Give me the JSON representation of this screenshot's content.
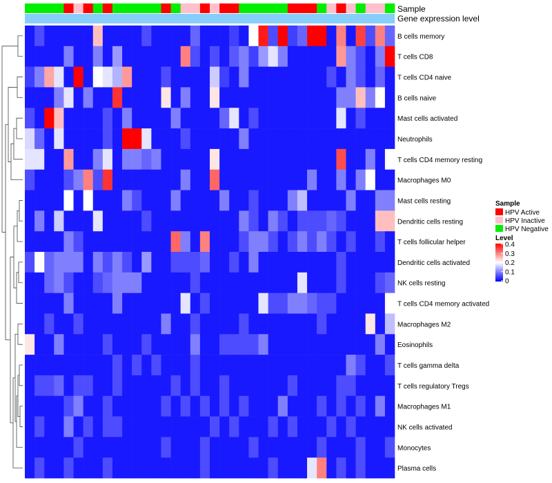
{
  "chart_data": {
    "type": "heatmap",
    "annotation_labels": {
      "sample": "Sample",
      "gene": "Gene expression level"
    },
    "legend": {
      "sample_title": "Sample",
      "sample_items": [
        {
          "label": "HPV Active",
          "color": "#FF0000"
        },
        {
          "label": "HPV Inactive",
          "color": "#FFC0CB"
        },
        {
          "label": "HPV Negative",
          "color": "#00EE00"
        }
      ],
      "level_title": "Level",
      "level_ticks": [
        "0.4",
        "0.3",
        "0.2",
        "0.1",
        "0"
      ],
      "level_range": [
        0,
        0.4
      ]
    },
    "colors": {
      "low": "#0000FF",
      "mid": "#FFFFFF",
      "high": "#FF0000",
      "gene_bar": "#87CEFA"
    },
    "sample_groups": [
      "N",
      "N",
      "N",
      "N",
      "A",
      "I",
      "A",
      "N",
      "A",
      "N",
      "N",
      "N",
      "N",
      "N",
      "A",
      "N",
      "I",
      "I",
      "A",
      "I",
      "A",
      "A",
      "N",
      "N",
      "N",
      "N",
      "N",
      "A",
      "A",
      "A",
      "N",
      "I",
      "A",
      "I",
      "N",
      "I",
      "I",
      "N"
    ],
    "rows": [
      {
        "name": "B cells memory",
        "values": [
          0.02,
          0.06,
          0.02,
          0.02,
          0.02,
          0.02,
          0.02,
          0.25,
          0.02,
          0.02,
          0.02,
          0.02,
          0.06,
          0.02,
          0.02,
          0.02,
          0.02,
          0.08,
          0.02,
          0.02,
          0.02,
          0.05,
          0.02,
          0.2,
          0.38,
          0.06,
          0.4,
          0.05,
          0.08,
          0.4,
          0.4,
          0.02,
          0.3,
          0.02,
          0.35,
          0.06,
          0.3,
          0.08
        ]
      },
      {
        "name": "T cells CD8",
        "values": [
          0.02,
          0.02,
          0.02,
          0.02,
          0.1,
          0.02,
          0.02,
          0.1,
          0.02,
          0.12,
          0.02,
          0.02,
          0.02,
          0.02,
          0.02,
          0.02,
          0.3,
          0.06,
          0.02,
          0.06,
          0.02,
          0.07,
          0.1,
          0.05,
          0.12,
          0.18,
          0.1,
          0.02,
          0.02,
          0.02,
          0.02,
          0.02,
          0.28,
          0.1,
          0.06,
          0.02,
          0.1,
          0.4
        ]
      },
      {
        "name": "T cells CD4 naive",
        "values": [
          0.05,
          0.1,
          0.27,
          0.18,
          0.02,
          0.4,
          0.02,
          0.2,
          0.18,
          0.14,
          0.28,
          0.02,
          0.02,
          0.02,
          0.06,
          0.02,
          0.02,
          0.02,
          0.02,
          0.16,
          0.05,
          0.02,
          0.1,
          0.02,
          0.02,
          0.02,
          0.02,
          0.02,
          0.02,
          0.02,
          0.02,
          0.06,
          0.02,
          0.1,
          0.06,
          0.02,
          0.08,
          0.02
        ]
      },
      {
        "name": "B cells naive",
        "values": [
          0.02,
          0.02,
          0.02,
          0.1,
          0.18,
          0.02,
          0.1,
          0.02,
          0.02,
          0.36,
          0.02,
          0.02,
          0.02,
          0.02,
          0.22,
          0.02,
          0.1,
          0.02,
          0.02,
          0.22,
          0.02,
          0.02,
          0.02,
          0.02,
          0.02,
          0.02,
          0.02,
          0.02,
          0.02,
          0.02,
          0.02,
          0.02,
          0.1,
          0.1,
          0.25,
          0.1,
          0.2,
          0.02
        ]
      },
      {
        "name": "Mast cells activated",
        "values": [
          0.06,
          0.02,
          0.4,
          0.25,
          0.02,
          0.02,
          0.02,
          0.02,
          0.06,
          0.02,
          0.1,
          0.02,
          0.02,
          0.02,
          0.02,
          0.1,
          0.02,
          0.02,
          0.02,
          0.02,
          0.08,
          0.18,
          0.02,
          0.06,
          0.02,
          0.02,
          0.02,
          0.02,
          0.02,
          0.02,
          0.02,
          0.02,
          0.18,
          0.02,
          0.06,
          0.02,
          0.02,
          0.02
        ]
      },
      {
        "name": "Neutrophils",
        "values": [
          0.17,
          0.08,
          0.02,
          0.18,
          0.02,
          0.02,
          0.02,
          0.02,
          0.06,
          0.02,
          0.4,
          0.4,
          0.18,
          0.02,
          0.02,
          0.02,
          0.06,
          0.02,
          0.02,
          0.02,
          0.02,
          0.02,
          0.1,
          0.02,
          0.02,
          0.02,
          0.02,
          0.02,
          0.02,
          0.02,
          0.02,
          0.02,
          0.02,
          0.02,
          0.02,
          0.02,
          0.02,
          0.02
        ]
      },
      {
        "name": "T cells CD4 memory resting",
        "values": [
          0.18,
          0.18,
          0.02,
          0.02,
          0.28,
          0.02,
          0.02,
          0.1,
          0.18,
          0.02,
          0.1,
          0.1,
          0.08,
          0.1,
          0.02,
          0.02,
          0.02,
          0.02,
          0.02,
          0.22,
          0.02,
          0.02,
          0.02,
          0.02,
          0.02,
          0.02,
          0.02,
          0.02,
          0.02,
          0.02,
          0.02,
          0.02,
          0.34,
          0.02,
          0.02,
          0.1,
          0.02,
          0.2
        ]
      },
      {
        "name": "Macrophages M0",
        "values": [
          0.06,
          0.02,
          0.02,
          0.02,
          0.06,
          0.1,
          0.3,
          0.06,
          0.36,
          0.02,
          0.02,
          0.02,
          0.02,
          0.02,
          0.02,
          0.02,
          0.1,
          0.02,
          0.02,
          0.32,
          0.02,
          0.02,
          0.02,
          0.02,
          0.02,
          0.02,
          0.02,
          0.02,
          0.02,
          0.1,
          0.02,
          0.02,
          0.1,
          0.02,
          0.1,
          0.2,
          0.02,
          0.02
        ]
      },
      {
        "name": "Mast cells resting",
        "values": [
          0.02,
          0.02,
          0.02,
          0.02,
          0.2,
          0.02,
          0.2,
          0.02,
          0.02,
          0.02,
          0.1,
          0.06,
          0.02,
          0.02,
          0.02,
          0.1,
          0.02,
          0.02,
          0.02,
          0.02,
          0.1,
          0.02,
          0.02,
          0.06,
          0.02,
          0.02,
          0.02,
          0.1,
          0.15,
          0.02,
          0.02,
          0.02,
          0.02,
          0.1,
          0.02,
          0.02,
          0.1,
          0.1
        ]
      },
      {
        "name": "Dendritic cells resting",
        "values": [
          0.02,
          0.1,
          0.02,
          0.16,
          0.02,
          0.02,
          0.02,
          0.18,
          0.02,
          0.02,
          0.02,
          0.02,
          0.06,
          0.02,
          0.02,
          0.02,
          0.02,
          0.02,
          0.02,
          0.02,
          0.02,
          0.02,
          0.1,
          0.06,
          0.02,
          0.1,
          0.06,
          0.02,
          0.06,
          0.06,
          0.06,
          0.08,
          0.06,
          0.02,
          0.02,
          0.02,
          0.25,
          0.25
        ]
      },
      {
        "name": "T cells follicular helper",
        "values": [
          0.02,
          0.02,
          0.02,
          0.02,
          0.1,
          0.06,
          0.02,
          0.02,
          0.02,
          0.02,
          0.02,
          0.02,
          0.02,
          0.02,
          0.02,
          0.32,
          0.1,
          0.02,
          0.3,
          0.02,
          0.02,
          0.02,
          0.06,
          0.1,
          0.1,
          0.06,
          0.02,
          0.06,
          0.1,
          0.06,
          0.1,
          0.06,
          0.02,
          0.06,
          0.02,
          0.02,
          0.06,
          0.02
        ]
      },
      {
        "name": "Dendritic cells activated",
        "values": [
          0.06,
          0.2,
          0.08,
          0.1,
          0.1,
          0.1,
          0.02,
          0.1,
          0.06,
          0.1,
          0.06,
          0.02,
          0.12,
          0.02,
          0.02,
          0.06,
          0.06,
          0.06,
          0.08,
          0.02,
          0.02,
          0.06,
          0.02,
          0.1,
          0.02,
          0.02,
          0.02,
          0.02,
          0.02,
          0.02,
          0.02,
          0.02,
          0.06,
          0.02,
          0.02,
          0.02,
          0.02,
          0.02
        ]
      },
      {
        "name": "NK cells resting",
        "values": [
          0.02,
          0.02,
          0.08,
          0.1,
          0.06,
          0.02,
          0.02,
          0.06,
          0.08,
          0.1,
          0.1,
          0.1,
          0.02,
          0.02,
          0.02,
          0.02,
          0.02,
          0.06,
          0.02,
          0.02,
          0.02,
          0.02,
          0.02,
          0.02,
          0.02,
          0.02,
          0.02,
          0.02,
          0.18,
          0.02,
          0.02,
          0.02,
          0.06,
          0.02,
          0.02,
          0.02,
          0.06,
          0.08
        ]
      },
      {
        "name": "T cells CD4 memory activated",
        "values": [
          0.02,
          0.02,
          0.02,
          0.02,
          0.1,
          0.02,
          0.02,
          0.02,
          0.02,
          0.1,
          0.02,
          0.02,
          0.02,
          0.02,
          0.02,
          0.02,
          0.18,
          0.02,
          0.06,
          0.02,
          0.02,
          0.02,
          0.02,
          0.02,
          0.18,
          0.06,
          0.06,
          0.1,
          0.1,
          0.08,
          0.06,
          0.06,
          0.02,
          0.02,
          0.02,
          0.02,
          0.02,
          0.2
        ]
      },
      {
        "name": "Macrophages M2",
        "values": [
          0.02,
          0.02,
          0.06,
          0.02,
          0.02,
          0.06,
          0.02,
          0.02,
          0.02,
          0.02,
          0.02,
          0.02,
          0.02,
          0.02,
          0.1,
          0.02,
          0.02,
          0.06,
          0.02,
          0.02,
          0.02,
          0.02,
          0.06,
          0.02,
          0.02,
          0.02,
          0.02,
          0.02,
          0.02,
          0.02,
          0.06,
          0.02,
          0.02,
          0.02,
          0.02,
          0.22,
          0.02,
          0.15
        ]
      },
      {
        "name": "Eosinophils",
        "values": [
          0.22,
          0.02,
          0.02,
          0.1,
          0.02,
          0.02,
          0.02,
          0.02,
          0.06,
          0.02,
          0.02,
          0.02,
          0.06,
          0.02,
          0.02,
          0.02,
          0.02,
          0.1,
          0.02,
          0.02,
          0.06,
          0.06,
          0.06,
          0.06,
          0.1,
          0.02,
          0.02,
          0.02,
          0.02,
          0.02,
          0.02,
          0.02,
          0.02,
          0.02,
          0.02,
          0.02,
          0.1,
          0.02
        ]
      },
      {
        "name": "T cells gamma delta",
        "values": [
          0.02,
          0.02,
          0.02,
          0.02,
          0.02,
          0.02,
          0.02,
          0.02,
          0.02,
          0.06,
          0.02,
          0.06,
          0.02,
          0.06,
          0.02,
          0.02,
          0.02,
          0.06,
          0.02,
          0.02,
          0.02,
          0.02,
          0.02,
          0.02,
          0.02,
          0.02,
          0.02,
          0.02,
          0.02,
          0.02,
          0.02,
          0.02,
          0.02,
          0.1,
          0.06,
          0.02,
          0.02,
          0.06
        ]
      },
      {
        "name": "T cells regulatory  Tregs",
        "values": [
          0.02,
          0.06,
          0.06,
          0.08,
          0.02,
          0.06,
          0.06,
          0.02,
          0.02,
          0.06,
          0.02,
          0.02,
          0.02,
          0.02,
          0.02,
          0.06,
          0.02,
          0.06,
          0.02,
          0.02,
          0.06,
          0.02,
          0.02,
          0.02,
          0.02,
          0.02,
          0.02,
          0.06,
          0.02,
          0.02,
          0.02,
          0.02,
          0.06,
          0.06,
          0.02,
          0.02,
          0.02,
          0.02
        ]
      },
      {
        "name": "Macrophages M1",
        "values": [
          0.02,
          0.02,
          0.02,
          0.02,
          0.06,
          0.1,
          0.02,
          0.02,
          0.06,
          0.02,
          0.02,
          0.02,
          0.02,
          0.02,
          0.06,
          0.02,
          0.06,
          0.02,
          0.06,
          0.02,
          0.06,
          0.02,
          0.06,
          0.02,
          0.02,
          0.02,
          0.1,
          0.02,
          0.02,
          0.02,
          0.06,
          0.02,
          0.06,
          0.02,
          0.06,
          0.02,
          0.1,
          0.02
        ]
      },
      {
        "name": "NK cells activated",
        "values": [
          0.02,
          0.06,
          0.02,
          0.02,
          0.1,
          0.02,
          0.06,
          0.02,
          0.06,
          0.06,
          0.02,
          0.02,
          0.02,
          0.02,
          0.02,
          0.02,
          0.02,
          0.02,
          0.02,
          0.06,
          0.02,
          0.06,
          0.02,
          0.02,
          0.02,
          0.06,
          0.02,
          0.06,
          0.02,
          0.02,
          0.02,
          0.06,
          0.02,
          0.06,
          0.02,
          0.02,
          0.02,
          0.02
        ]
      },
      {
        "name": "Monocytes",
        "values": [
          0.02,
          0.02,
          0.02,
          0.02,
          0.02,
          0.06,
          0.02,
          0.02,
          0.02,
          0.02,
          0.02,
          0.02,
          0.02,
          0.02,
          0.06,
          0.02,
          0.02,
          0.02,
          0.06,
          0.02,
          0.02,
          0.02,
          0.02,
          0.06,
          0.02,
          0.02,
          0.02,
          0.02,
          0.02,
          0.02,
          0.06,
          0.02,
          0.02,
          0.02,
          0.06,
          0.02,
          0.02,
          0.06
        ]
      },
      {
        "name": "Plasma cells",
        "values": [
          0.02,
          0.06,
          0.02,
          0.02,
          0.06,
          0.02,
          0.02,
          0.02,
          0.06,
          0.02,
          0.02,
          0.02,
          0.02,
          0.02,
          0.02,
          0.02,
          0.02,
          0.02,
          0.06,
          0.02,
          0.02,
          0.02,
          0.02,
          0.02,
          0.02,
          0.06,
          0.02,
          0.02,
          0.02,
          0.18,
          0.3,
          0.02,
          0.06,
          0.02,
          0.06,
          0.02,
          0.02,
          0.02
        ]
      }
    ]
  }
}
